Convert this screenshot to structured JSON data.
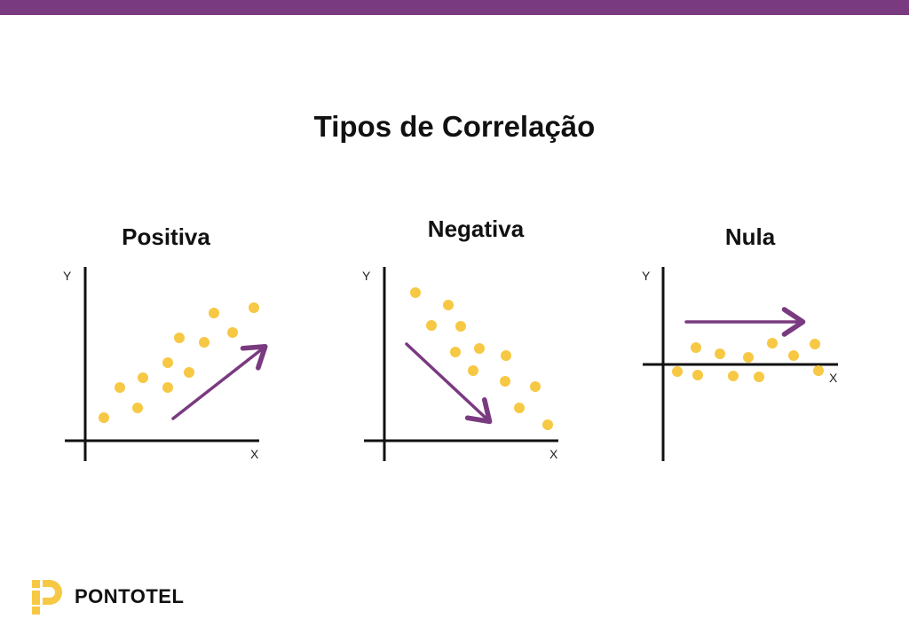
{
  "page_title": "Tipos de Correlação",
  "colors": {
    "accent": "#7a3a80",
    "point": "#f7c843",
    "axis": "#111111"
  },
  "panels": [
    {
      "title": "Positiva",
      "x_label": "X",
      "y_label": "Y"
    },
    {
      "title": "Negativa",
      "x_label": "X",
      "y_label": "Y"
    },
    {
      "title": "Nula",
      "x_label": "X",
      "y_label": "Y"
    }
  ],
  "brand": {
    "name": "PONTOTEL",
    "icon": "pontotel-logo-icon"
  }
}
